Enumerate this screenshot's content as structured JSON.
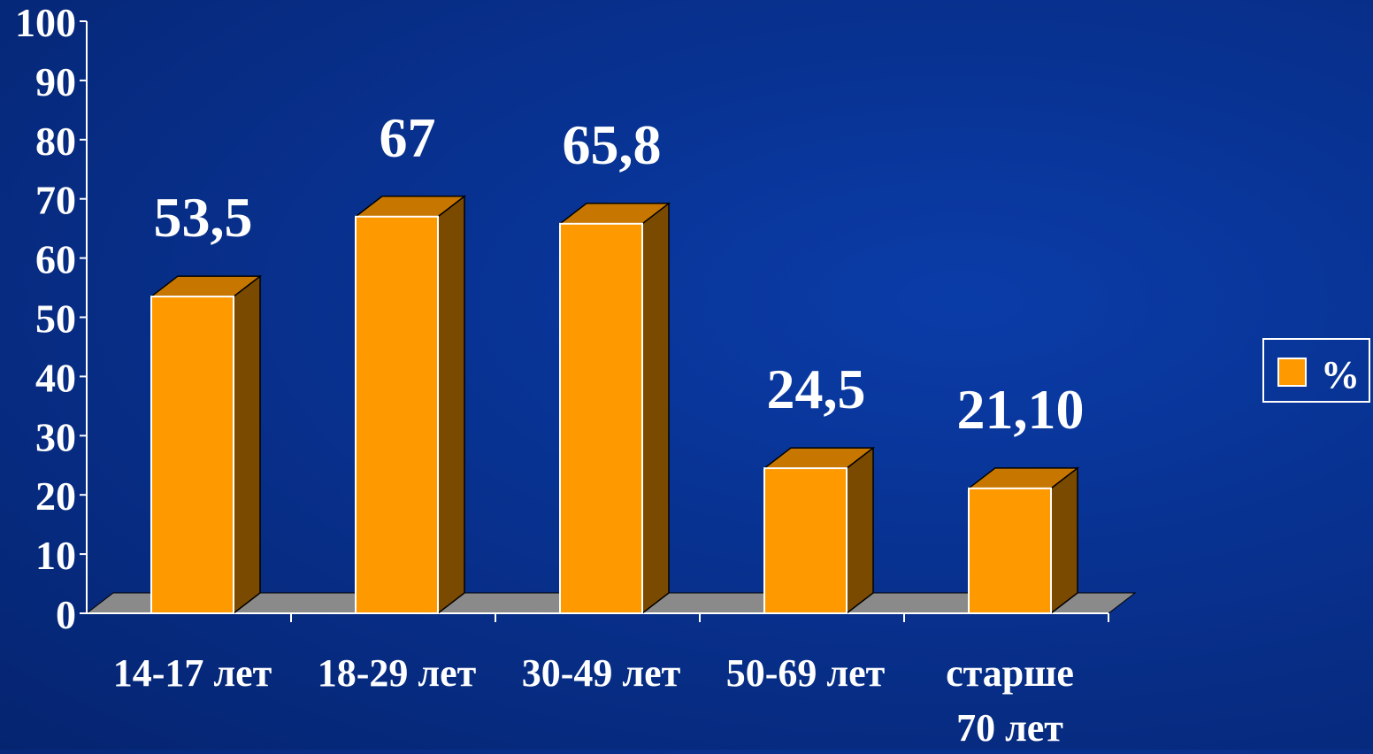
{
  "chart_data": {
    "type": "bar",
    "categories": [
      [
        "14-17 лет"
      ],
      [
        "18-29 лет"
      ],
      [
        "30-49 лет"
      ],
      [
        "50-69 лет"
      ],
      [
        "старше",
        "70 лет"
      ]
    ],
    "series": [
      {
        "name": "%",
        "values": [
          53.5,
          67,
          65.8,
          24.5,
          21.1
        ],
        "data_labels": [
          "53,5",
          "67",
          "65,8",
          "24,5",
          "21,10"
        ]
      }
    ],
    "title": "",
    "xlabel": "",
    "ylabel": "",
    "ylim": [
      0,
      100
    ],
    "yticks": [
      "0",
      "10",
      "20",
      "30",
      "40",
      "50",
      "60",
      "70",
      "80",
      "90",
      "100"
    ],
    "grid": false,
    "legend": "right",
    "three_d": true,
    "colors": {
      "bar_front": "#ff9900",
      "bar_top": "#c77700",
      "bar_side": "#7a4a00",
      "floor": "#8a8a8a",
      "axis": "#ffffff"
    }
  }
}
